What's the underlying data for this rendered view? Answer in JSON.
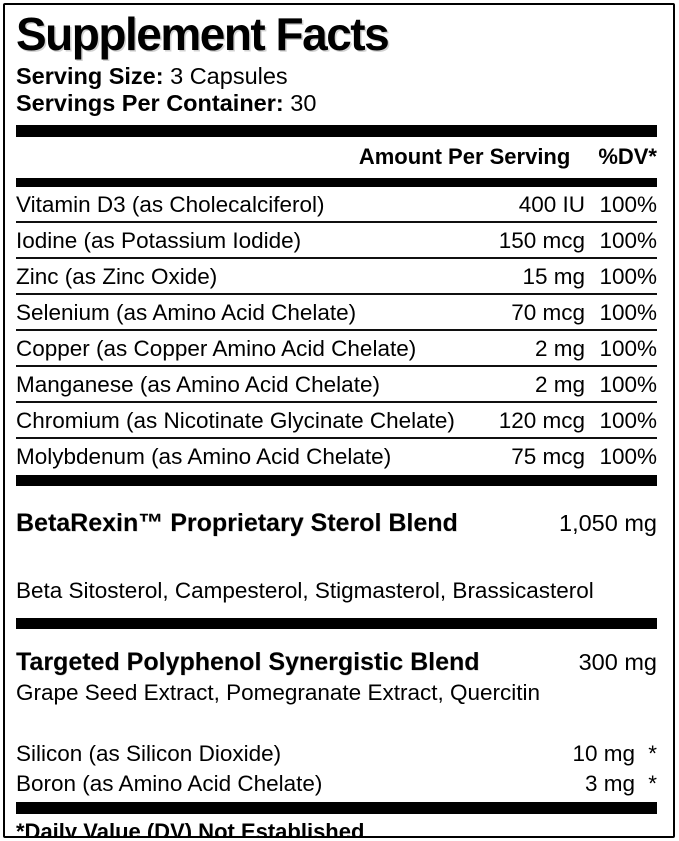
{
  "label": {
    "title": "Supplement Facts",
    "serving": {
      "size_label": "Serving Size:",
      "size_value": "3 Capsules",
      "per_container_label": "Servings Per Container:",
      "per_container_value": "30"
    },
    "columns": {
      "amount": "Amount Per Serving",
      "dv": "%DV*"
    },
    "nutrients": [
      {
        "name": "Vitamin D3 (as Cholecalciferol)",
        "amount": "400 IU",
        "dv": "100%"
      },
      {
        "name": "Iodine (as Potassium Iodide)",
        "amount": "150 mcg",
        "dv": "100%"
      },
      {
        "name": "Zinc (as Zinc Oxide)",
        "amount": "15 mg",
        "dv": "100%"
      },
      {
        "name": "Selenium (as Amino Acid Chelate)",
        "amount": "70 mcg",
        "dv": "100%"
      },
      {
        "name": "Copper (as Copper Amino Acid Chelate)",
        "amount": "2 mg",
        "dv": "100%"
      },
      {
        "name": "Manganese (as Amino Acid Chelate)",
        "amount": "2 mg",
        "dv": "100%"
      },
      {
        "name": "Chromium (as Nicotinate Glycinate Chelate)",
        "amount": "120 mcg",
        "dv": "100%"
      },
      {
        "name": "Molybdenum (as Amino Acid Chelate)",
        "amount": "75 mcg",
        "dv": "100%"
      }
    ],
    "blends": [
      {
        "name": "BetaRexin™ Proprietary Sterol Blend",
        "amount": "1,050 mg",
        "ingredients": "Beta Sitosterol, Campesterol, Stigmasterol, Brassicasterol"
      },
      {
        "name": "Targeted Polyphenol Synergistic Blend",
        "amount": "300 mg",
        "ingredients": "Grape Seed Extract, Pomegranate Extract, Quercitin"
      }
    ],
    "trace_nutrients": [
      {
        "name": "Silicon (as Silicon Dioxide)",
        "amount": "10 mg",
        "dv": "*"
      },
      {
        "name": "Boron (as Amino Acid Chelate)",
        "amount": "3 mg",
        "dv": "*"
      }
    ],
    "footnote": "*Daily Value (DV) Not Established",
    "colors": {
      "ink": "#000000",
      "background": "#ffffff"
    }
  }
}
